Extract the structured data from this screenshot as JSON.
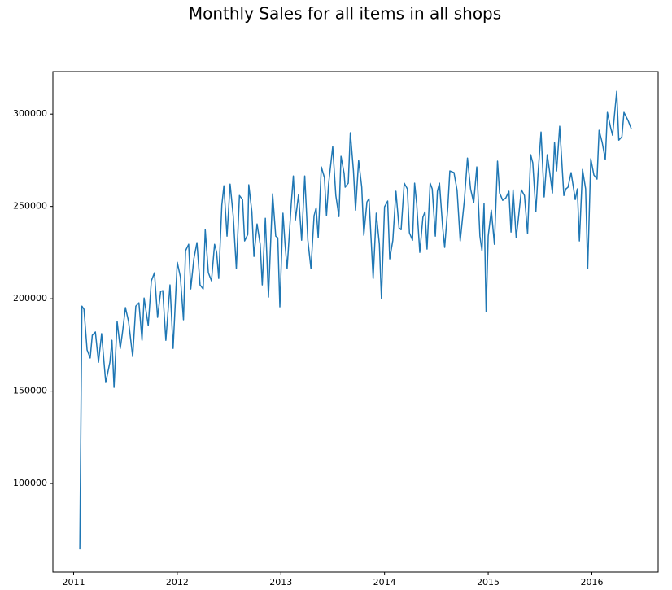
{
  "chart_data": {
    "type": "line",
    "title": "Monthly Sales for all items in all shops",
    "color": "#1f77b4",
    "x": [
      2011.06,
      2011.08,
      2011.1,
      2011.13,
      2011.16,
      2011.18,
      2011.21,
      2011.24,
      2011.27,
      2011.29,
      2011.31,
      2011.35,
      2011.37,
      2011.39,
      2011.42,
      2011.45,
      2011.47,
      2011.5,
      2011.53,
      2011.57,
      2011.6,
      2011.63,
      2011.66,
      2011.68,
      2011.72,
      2011.75,
      2011.78,
      2011.81,
      2011.84,
      2011.86,
      2011.89,
      2011.93,
      2011.96,
      2012.0,
      2012.03,
      2012.06,
      2012.08,
      2012.11,
      2012.13,
      2012.16,
      2012.19,
      2012.22,
      2012.25,
      2012.27,
      2012.3,
      2012.33,
      2012.36,
      2012.38,
      2012.4,
      2012.43,
      2012.45,
      2012.48,
      2012.51,
      2012.54,
      2012.57,
      2012.6,
      2012.63,
      2012.65,
      2012.68,
      2012.69,
      2012.72,
      2012.74,
      2012.77,
      2012.8,
      2012.82,
      2012.85,
      2012.88,
      2012.92,
      2012.95,
      2012.97,
      2012.99,
      2013.02,
      2013.04,
      2013.06,
      2013.1,
      2013.12,
      2013.14,
      2013.17,
      2013.2,
      2013.23,
      2013.26,
      2013.29,
      2013.32,
      2013.34,
      2013.36,
      2013.39,
      2013.42,
      2013.44,
      2013.46,
      2013.5,
      2013.53,
      2013.56,
      2013.58,
      2013.61,
      2013.62,
      2013.65,
      2013.67,
      2013.7,
      2013.72,
      2013.75,
      2013.78,
      2013.8,
      2013.83,
      2013.85,
      2013.89,
      2013.92,
      2013.95,
      2013.97,
      2014.0,
      2014.03,
      2014.05,
      2014.08,
      2014.11,
      2014.14,
      2014.16,
      2014.19,
      2014.22,
      2014.24,
      2014.27,
      2014.29,
      2014.31,
      2014.34,
      2014.37,
      2014.39,
      2014.41,
      2014.44,
      2014.46,
      2014.49,
      2014.51,
      2014.53,
      2014.56,
      2014.58,
      2014.61,
      2014.63,
      2014.67,
      2014.7,
      2014.73,
      2014.77,
      2014.8,
      2014.83,
      2014.86,
      2014.89,
      2014.92,
      2014.94,
      2014.96,
      2014.98,
      2015.0,
      2015.03,
      2015.06,
      2015.09,
      2015.11,
      2015.14,
      2015.17,
      2015.2,
      2015.22,
      2015.24,
      2015.27,
      2015.29,
      2015.32,
      2015.35,
      2015.38,
      2015.41,
      2015.43,
      2015.46,
      2015.48,
      2015.51,
      2015.54,
      2015.57,
      2015.59,
      2015.62,
      2015.64,
      2015.66,
      2015.69,
      2015.73,
      2015.75,
      2015.77,
      2015.8,
      2015.84,
      2015.86,
      2015.88,
      2015.91,
      2015.94,
      2015.96,
      2015.99,
      2016.02,
      2016.05,
      2016.07,
      2016.1,
      2016.13,
      2016.15,
      2016.18,
      2016.2,
      2016.24,
      2016.26,
      2016.29,
      2016.31,
      2016.35,
      2016.38
    ],
    "values": [
      64300,
      196000,
      194300,
      172300,
      167900,
      180200,
      182000,
      165600,
      181100,
      167900,
      154600,
      165600,
      177500,
      152000,
      187700,
      173100,
      181100,
      195200,
      187700,
      168700,
      196000,
      197800,
      177500,
      200400,
      185500,
      209700,
      214100,
      189900,
      204000,
      204400,
      177500,
      207500,
      173100,
      219800,
      211900,
      188600,
      226000,
      229500,
      205300,
      221600,
      230400,
      207500,
      205300,
      237400,
      214100,
      209700,
      229500,
      225100,
      211000,
      250700,
      261200,
      233900,
      262100,
      244900,
      216300,
      255900,
      253700,
      231300,
      234800,
      261700,
      247100,
      222900,
      240500,
      229500,
      207500,
      243600,
      200900,
      256800,
      233900,
      233000,
      195600,
      246300,
      229500,
      216300,
      251500,
      266500,
      242700,
      256400,
      231700,
      266500,
      231700,
      216300,
      244900,
      249300,
      233000,
      271400,
      265600,
      244900,
      262100,
      282400,
      255900,
      244500,
      277100,
      267800,
      260400,
      262600,
      289900,
      269200,
      248000,
      274900,
      260400,
      234400,
      252400,
      254200,
      211000,
      246300,
      229500,
      200000,
      249800,
      252900,
      221600,
      231700,
      258200,
      238300,
      237400,
      262600,
      259500,
      235700,
      231700,
      262600,
      251500,
      225100,
      244100,
      247100,
      226900,
      262600,
      259500,
      233900,
      258200,
      262600,
      239200,
      227800,
      249300,
      269200,
      268300,
      258600,
      231300,
      253300,
      276200,
      259500,
      252000,
      271400,
      233900,
      226000,
      251500,
      193000,
      233900,
      248000,
      229500,
      274500,
      257300,
      253300,
      254600,
      258200,
      236100,
      259000,
      233000,
      242700,
      259000,
      255900,
      235200,
      278000,
      273600,
      247100,
      267000,
      290300,
      255100,
      278000,
      270000,
      257300,
      284600,
      269200,
      293400,
      255900,
      259500,
      260400,
      268300,
      253700,
      259500,
      231300,
      270000,
      259500,
      216300,
      275800,
      267000,
      264800,
      291200,
      284600,
      275300,
      300900,
      293000,
      288500,
      312300,
      285900,
      287700,
      300900,
      296500,
      292100
    ],
    "xlim": [
      2010.8,
      2016.64
    ],
    "xticks": [
      2011,
      2012,
      2013,
      2014,
      2015,
      2016
    ],
    "ylim": [
      52000,
      323000
    ],
    "yticks": [
      100000,
      150000,
      200000,
      250000,
      300000
    ]
  }
}
